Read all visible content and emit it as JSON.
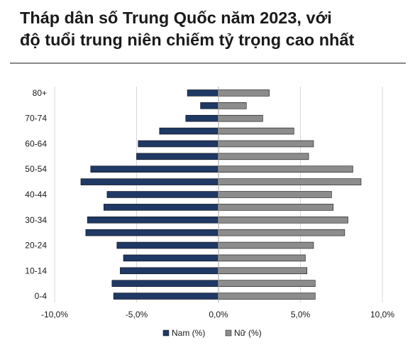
{
  "title": {
    "line1": "Tháp dân số Trung Quốc năm 2023, với",
    "line2": "độ tuổi trung niên chiếm tỷ trọng cao nhất"
  },
  "colors": {
    "male": "#1f3864",
    "female": "#8c8c8c",
    "grid": "#d9d9d9",
    "axis": "#a6a6a6"
  },
  "chart_data": {
    "type": "bar",
    "orientation": "horizontal",
    "categories": [
      "80+",
      "75-79",
      "70-74",
      "65-69",
      "60-64",
      "55-59",
      "50-54",
      "45-49",
      "40-44",
      "35-39",
      "30-34",
      "25-29",
      "20-24",
      "15-19",
      "10-14",
      "5-9",
      "0-4"
    ],
    "visible_category_labels": [
      "80+",
      "70-74",
      "60-64",
      "50-54",
      "40-44",
      "30-34",
      "20-24",
      "10-14",
      "0-4"
    ],
    "series": [
      {
        "name": "Nam (%)",
        "values": [
          -1.9,
          -1.1,
          -2.0,
          -3.6,
          -4.9,
          -5.0,
          -7.8,
          -8.4,
          -6.8,
          -7.0,
          -8.0,
          -8.1,
          -6.2,
          -5.8,
          -6.0,
          -6.5,
          -6.4
        ]
      },
      {
        "name": "Nữ (%)",
        "values": [
          3.1,
          1.7,
          2.7,
          4.6,
          5.8,
          5.5,
          8.2,
          8.7,
          6.9,
          7.0,
          7.9,
          7.7,
          5.8,
          5.3,
          5.4,
          5.9,
          5.9
        ]
      }
    ],
    "xlim": [
      -10,
      10
    ],
    "xticks": [
      -10,
      -5,
      0,
      5,
      10
    ],
    "xtick_labels": [
      "-10,0%",
      "-5,0%",
      "0,0%",
      "5,0%",
      "10,0%"
    ],
    "grid": true,
    "legend_position": "bottom"
  }
}
